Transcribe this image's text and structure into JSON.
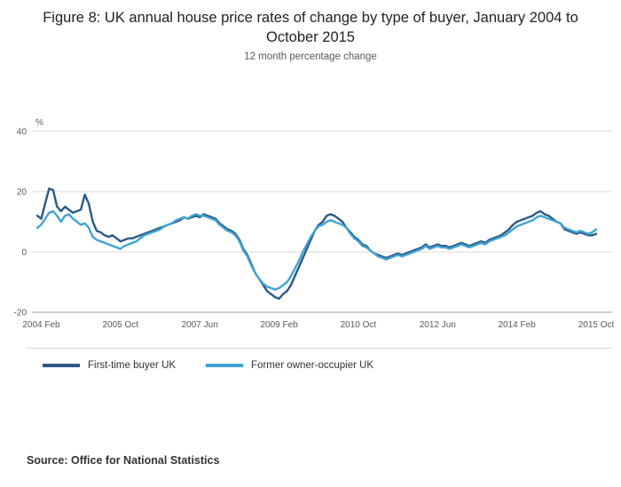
{
  "header": {
    "title": "Figure 8: UK annual house price rates of change by type of buyer, January 2004 to October 2015",
    "subtitle": "12 month percentage change"
  },
  "source": "Source: Office for National Statistics",
  "chart_data": {
    "type": "line",
    "title": "Figure 8: UK annual house price rates of change by type of buyer, January 2004 to October 2015",
    "subtitle": "12 month percentage change",
    "unit_label": "%",
    "ylim": [
      -20,
      40
    ],
    "yticks": [
      40,
      20,
      0,
      -20
    ],
    "grid": "horizontal",
    "legend_position": "bottom",
    "x_start": "2004 Jan",
    "x_end": "2015 Oct",
    "x_frequency": "monthly",
    "xtick_labels": [
      "2004 Feb",
      "2005 Oct",
      "2007 Jun",
      "2009 Feb",
      "2010 Oct",
      "2012 Jun",
      "2014 Feb",
      "2015 Oct"
    ],
    "xtick_indices": [
      1,
      21,
      41,
      61,
      81,
      101,
      121,
      141
    ],
    "series": [
      {
        "name": "First-time buyer UK",
        "color": "#2c5985",
        "values": [
          12,
          11,
          16,
          21,
          20.5,
          15,
          13.5,
          15,
          14,
          13,
          13.5,
          14,
          19,
          16,
          10,
          7,
          6.5,
          5.5,
          5,
          5.5,
          4.5,
          3.5,
          4,
          4.5,
          4.5,
          5,
          5.5,
          6,
          6.5,
          7,
          7.5,
          8,
          8.5,
          9,
          9.5,
          10,
          10.5,
          11.5,
          11,
          11.5,
          12,
          11.5,
          12.5,
          12,
          11.5,
          11,
          9.5,
          8.5,
          7.5,
          7,
          6,
          4,
          1,
          -1,
          -4,
          -7,
          -9,
          -11,
          -13,
          -14,
          -15,
          -15.5,
          -14,
          -13,
          -11,
          -8,
          -5,
          -2,
          1,
          4,
          7,
          9,
          10,
          12,
          12.5,
          12,
          11,
          10,
          8,
          6.5,
          5,
          4,
          2.5,
          2,
          0.5,
          -0.5,
          -1,
          -1.5,
          -2,
          -1.5,
          -1,
          -0.5,
          -1,
          -0.5,
          0,
          0.5,
          1,
          1.5,
          2.5,
          1.5,
          2,
          2.5,
          2,
          2,
          1.5,
          2,
          2.5,
          3,
          2.5,
          2,
          2.5,
          3,
          3.5,
          3,
          4,
          4.5,
          5,
          5.5,
          6.5,
          7.5,
          9,
          10,
          10.5,
          11,
          11.5,
          12,
          13,
          13.5,
          12.5,
          12,
          11,
          10,
          9.5,
          7.5,
          7,
          6.5,
          6,
          6.5,
          6,
          5.5,
          5.5,
          6
        ]
      },
      {
        "name": "Former owner-occupier UK",
        "color": "#3fa3d4",
        "values": [
          8,
          9,
          11,
          13,
          13.5,
          12,
          10,
          12,
          12.5,
          11,
          10,
          9,
          9.5,
          8,
          5,
          4,
          3.5,
          3,
          2.5,
          2,
          1.5,
          1,
          2,
          2.5,
          3,
          3.5,
          4.5,
          5.5,
          6,
          6.5,
          7,
          7.5,
          8.5,
          9,
          9.5,
          10.5,
          11,
          11.5,
          11,
          12,
          12.5,
          12,
          12,
          11.5,
          11,
          10.5,
          9,
          8,
          7,
          6.5,
          5.5,
          3.5,
          0.5,
          -1.5,
          -4.5,
          -7,
          -9,
          -10.5,
          -11.5,
          -12,
          -12.5,
          -12,
          -11,
          -10,
          -8,
          -5.5,
          -3,
          0,
          2.5,
          5,
          7,
          8.5,
          9,
          10,
          10.5,
          10,
          9.5,
          9,
          8,
          6,
          4.5,
          3.5,
          2,
          1.5,
          0.5,
          -0.5,
          -1.5,
          -2,
          -2.5,
          -2,
          -1.5,
          -1,
          -1.5,
          -1,
          -0.5,
          0,
          0.5,
          1,
          2,
          1,
          1.5,
          2,
          1.5,
          1.5,
          1,
          1.5,
          2,
          2.5,
          2,
          1.5,
          2,
          2.5,
          3,
          2.5,
          3.5,
          4,
          4.5,
          5,
          5.5,
          6.5,
          7.5,
          8.5,
          9,
          9.5,
          10,
          10.5,
          11.5,
          12,
          11.5,
          11,
          10.5,
          10,
          9.5,
          8,
          7.5,
          7,
          6.5,
          7,
          6.5,
          6,
          6.5,
          7.5
        ]
      }
    ]
  }
}
